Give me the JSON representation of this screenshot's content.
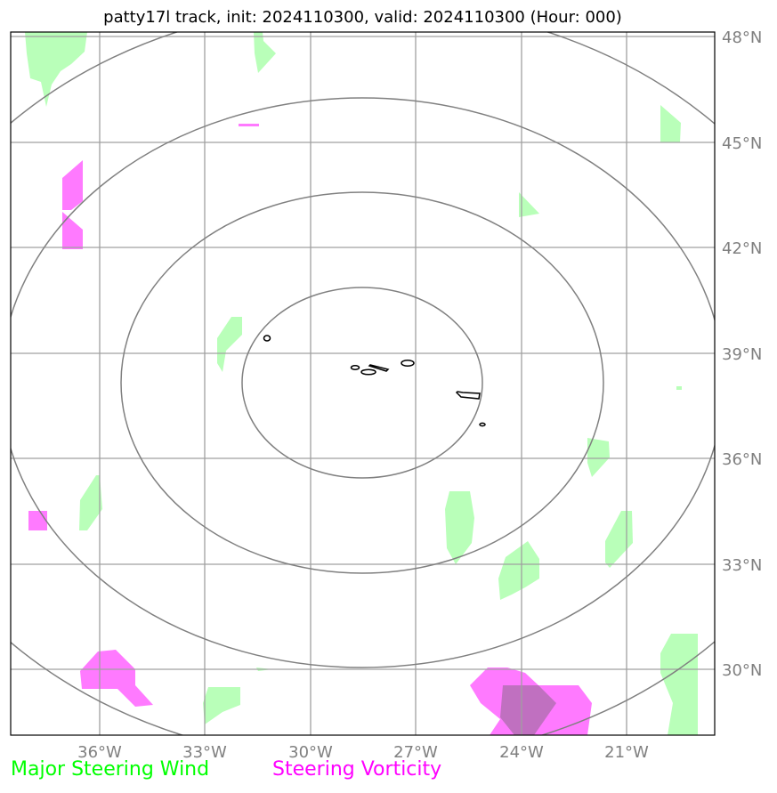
{
  "title": "patty17l track, init: 2024110300, valid: 2024110300 (Hour: 000)",
  "map": {
    "lat_labels": [
      "48°N",
      "45°N",
      "42°N",
      "39°N",
      "36°N",
      "33°N",
      "30°N"
    ],
    "lon_labels": [
      "36°W",
      "33°W",
      "30°W",
      "27°W",
      "24°W",
      "21°W"
    ],
    "lat_ticks": [
      48,
      45,
      42,
      39,
      36,
      33,
      30
    ],
    "lon_ticks": [
      -36,
      -33,
      -30,
      -27,
      -24,
      -21
    ],
    "extent": {
      "lon": [
        -38.5,
        -18.5
      ],
      "lat": [
        28.2,
        48.2
      ]
    },
    "gridlines": true,
    "storm_center": {
      "lon": -28.5,
      "lat": 38.0
    },
    "range_rings": {
      "count": 4,
      "color": "#808080"
    },
    "land": "Azores islands (outlined in black)",
    "colors": {
      "wind": "#00ff00",
      "wind_fill": "#b9ffb9",
      "vorticity": "#ff00ff",
      "vorticity_fill": "#ff7aff",
      "ring": "#808080",
      "grid": "#a0a0a0",
      "tick_label": "#808080"
    }
  },
  "legend": {
    "wind_label": "Major Steering Wind",
    "vorticity_label": "Steering Vorticity"
  }
}
